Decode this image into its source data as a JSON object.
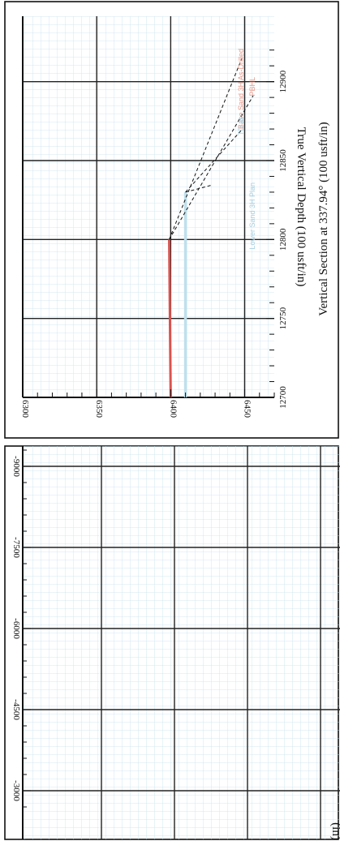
{
  "chart_data": [
    {
      "type": "line",
      "title": "",
      "xlabel": "Vertical Section at 337.94° (100 usft/in)",
      "ylabel": "True Vertical Depth (100 usft/in)",
      "xlim": [
        12700,
        12925
      ],
      "ylim": [
        6300,
        6470
      ],
      "x_ticks": [
        "12700",
        "12750",
        "12800",
        "12850",
        "12900"
      ],
      "y_ticks": [
        "6300",
        "6350",
        "6400",
        "6450"
      ],
      "series": [
        {
          "x": [
            12700,
            12800
          ],
          "y": [
            6400,
            6399
          ],
          "color": "#d9534f"
        },
        {
          "x": [
            12700,
            12830
          ],
          "y": [
            6410,
            6410
          ],
          "color": "#bfe0ec"
        }
      ],
      "annotations": [
        {
          "text": "Base Sand 3H As-Drilled",
          "color": "#e69a8c"
        },
        {
          "text": "PBHL",
          "color": "#e69a8c"
        },
        {
          "text": "TD at",
          "color": "#a8cfe0"
        },
        {
          "text": "Lower Sand 3H Plan",
          "color": "#a8cfe0"
        }
      ]
    },
    {
      "type": "line",
      "title": "",
      "xlabel": "",
      "ylabel": "(in)",
      "y_ticks": [
        "-9000",
        "-7500",
        "-6000",
        "-4500",
        "-3000"
      ],
      "series": []
    }
  ]
}
